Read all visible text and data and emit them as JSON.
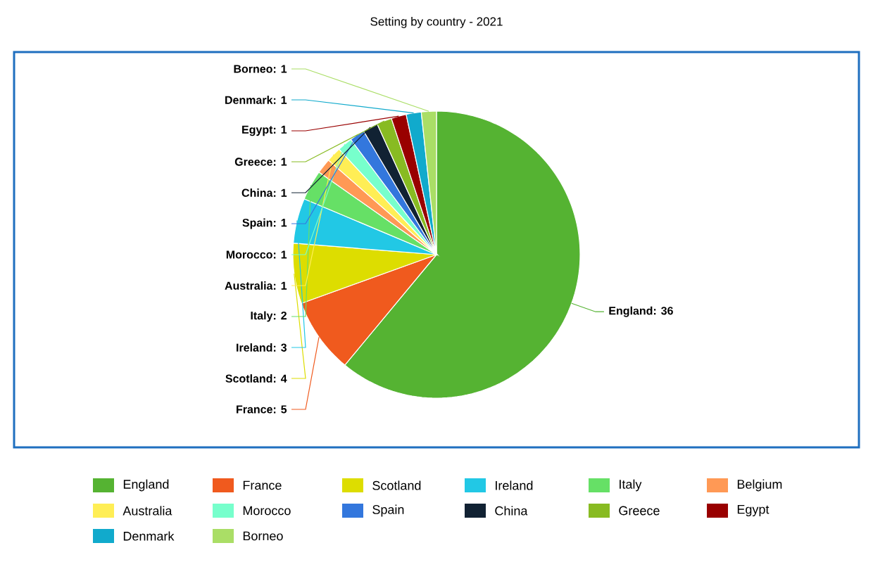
{
  "chart_data": {
    "type": "pie",
    "title": "Setting by country - 2021",
    "categories": [
      "England",
      "France",
      "Scotland",
      "Ireland",
      "Italy",
      "Belgium",
      "Australia",
      "Morocco",
      "Spain",
      "China",
      "Greece",
      "Egypt",
      "Denmark",
      "Borneo"
    ],
    "values": [
      36,
      5,
      4,
      3,
      2,
      1,
      1,
      1,
      1,
      1,
      1,
      1,
      1,
      1
    ],
    "value_labels": [
      "England: 36",
      "France: 5",
      "Scotland: 4",
      "Ireland: 3",
      "Italy: 2",
      null,
      "Australia: 1",
      "Morocco: 1",
      "Spain: 1",
      "China: 1",
      "Greece: 1",
      "Egypt: 1",
      "Denmark: 1",
      "Borneo: 1"
    ],
    "colors": [
      "#55b332",
      "#f05a1e",
      "#dddd00",
      "#22c8e5",
      "#66e066",
      "#ff9955",
      "#ffee55",
      "#77ffcc",
      "#3377dd",
      "#112233",
      "#88bb22",
      "#990000",
      "#11aacc",
      "#aade66"
    ],
    "legend": "bottom"
  }
}
